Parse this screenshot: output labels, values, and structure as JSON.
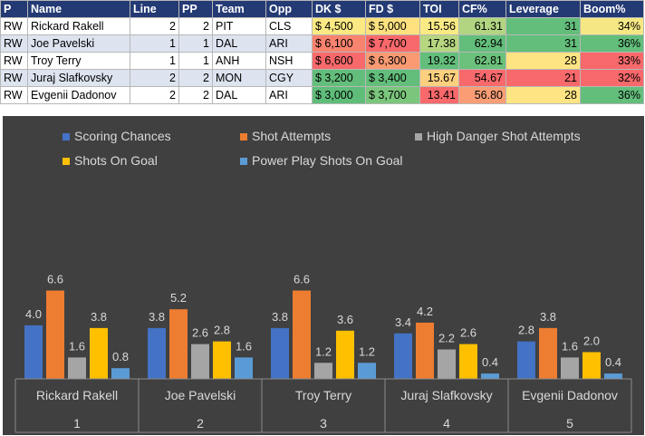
{
  "table": {
    "headers": [
      "P",
      "Name",
      "Line",
      "PP",
      "Team",
      "Opp",
      "DK $",
      "FD $",
      "TOI",
      "CF%",
      "Leverage",
      "Boom%"
    ],
    "rows": [
      {
        "P": "RW",
        "Name": "Rickard Rakell",
        "Line": "2",
        "PP": "2",
        "Team": "PIT",
        "Opp": "CLS",
        "DK": "$ 4,500",
        "FD": "$ 5,000",
        "TOI": "15.56",
        "CF": "61.31",
        "Leverage": "31",
        "Boom": "34%",
        "colors": {
          "DK": "#fbe983",
          "FD": "#fde17f",
          "TOI": "#f9ea84",
          "CF": "#b1d580",
          "Leverage": "#63be7b",
          "Boom": "#f5e884"
        }
      },
      {
        "P": "RW",
        "Name": "Joe Pavelski",
        "Line": "1",
        "PP": "1",
        "Team": "DAL",
        "Opp": "ARI",
        "DK": "$ 6,100",
        "FD": "$ 7,700",
        "TOI": "17.38",
        "CF": "62.94",
        "Leverage": "31",
        "Boom": "36%",
        "colors": {
          "DK": "#f8836f",
          "FD": "#f8696b",
          "TOI": "#b6d680",
          "CF": "#63be7b",
          "Leverage": "#63be7b",
          "Boom": "#63be7b"
        }
      },
      {
        "P": "RW",
        "Name": "Troy Terry",
        "Line": "1",
        "PP": "1",
        "Team": "ANH",
        "Opp": "NSH",
        "DK": "$ 6,600",
        "FD": "$ 6,300",
        "TOI": "19.32",
        "CF": "62.81",
        "Leverage": "28",
        "Boom": "33%",
        "colors": {
          "DK": "#f8696b",
          "FD": "#f99a73",
          "TOI": "#63be7b",
          "CF": "#6bc17b",
          "Leverage": "#fee482",
          "Boom": "#f8696b"
        }
      },
      {
        "P": "RW",
        "Name": "Juraj Slafkovsky",
        "Line": "2",
        "PP": "2",
        "Team": "MON",
        "Opp": "CGY",
        "DK": "$ 3,200",
        "FD": "$ 3,400",
        "TOI": "15.67",
        "CF": "54.67",
        "Leverage": "21",
        "Boom": "32%",
        "colors": {
          "DK": "#63be7b",
          "FD": "#63be7b",
          "TOI": "#fcd07f",
          "CF": "#f8696b",
          "Leverage": "#f8696b",
          "Boom": "#f8696b"
        }
      },
      {
        "P": "RW",
        "Name": "Evgenii Dadonov",
        "Line": "2",
        "PP": "2",
        "Team": "DAL",
        "Opp": "ARI",
        "DK": "$ 3,000",
        "FD": "$ 3,700",
        "TOI": "13.41",
        "CF": "56.80",
        "Leverage": "28",
        "Boom": "36%",
        "colors": {
          "DK": "#5fbd7a",
          "FD": "#7ac67c",
          "TOI": "#f8696b",
          "CF": "#fa9d75",
          "Leverage": "#fee482",
          "Boom": "#63be7b"
        }
      }
    ]
  },
  "chart_data": {
    "type": "bar",
    "title": "",
    "categories": [
      "Rickard Rakell",
      "Joe Pavelski",
      "Troy Terry",
      "Juraj Slafkovsky",
      "Evgenii Dadonov"
    ],
    "category_numbers": [
      "1",
      "2",
      "3",
      "4",
      "5"
    ],
    "series": [
      {
        "name": "Scoring Chances",
        "color": "#4472c4",
        "values": [
          4.0,
          3.8,
          3.8,
          3.4,
          2.8
        ]
      },
      {
        "name": "Shot Attempts",
        "color": "#ed7d31",
        "values": [
          6.6,
          5.2,
          6.6,
          4.2,
          3.8
        ]
      },
      {
        "name": "High Danger Shot Attempts",
        "color": "#a5a5a5",
        "values": [
          1.6,
          2.6,
          1.2,
          2.2,
          1.6
        ]
      },
      {
        "name": "Shots On Goal",
        "color": "#ffc000",
        "values": [
          3.8,
          2.8,
          3.6,
          2.6,
          2.0
        ]
      },
      {
        "name": "Power Play Shots On Goal",
        "color": "#5b9bd5",
        "values": [
          0.8,
          1.6,
          1.2,
          0.4,
          0.4
        ]
      }
    ],
    "ylim": [
      0,
      7.5
    ],
    "legend_position": "top",
    "grid": false
  }
}
